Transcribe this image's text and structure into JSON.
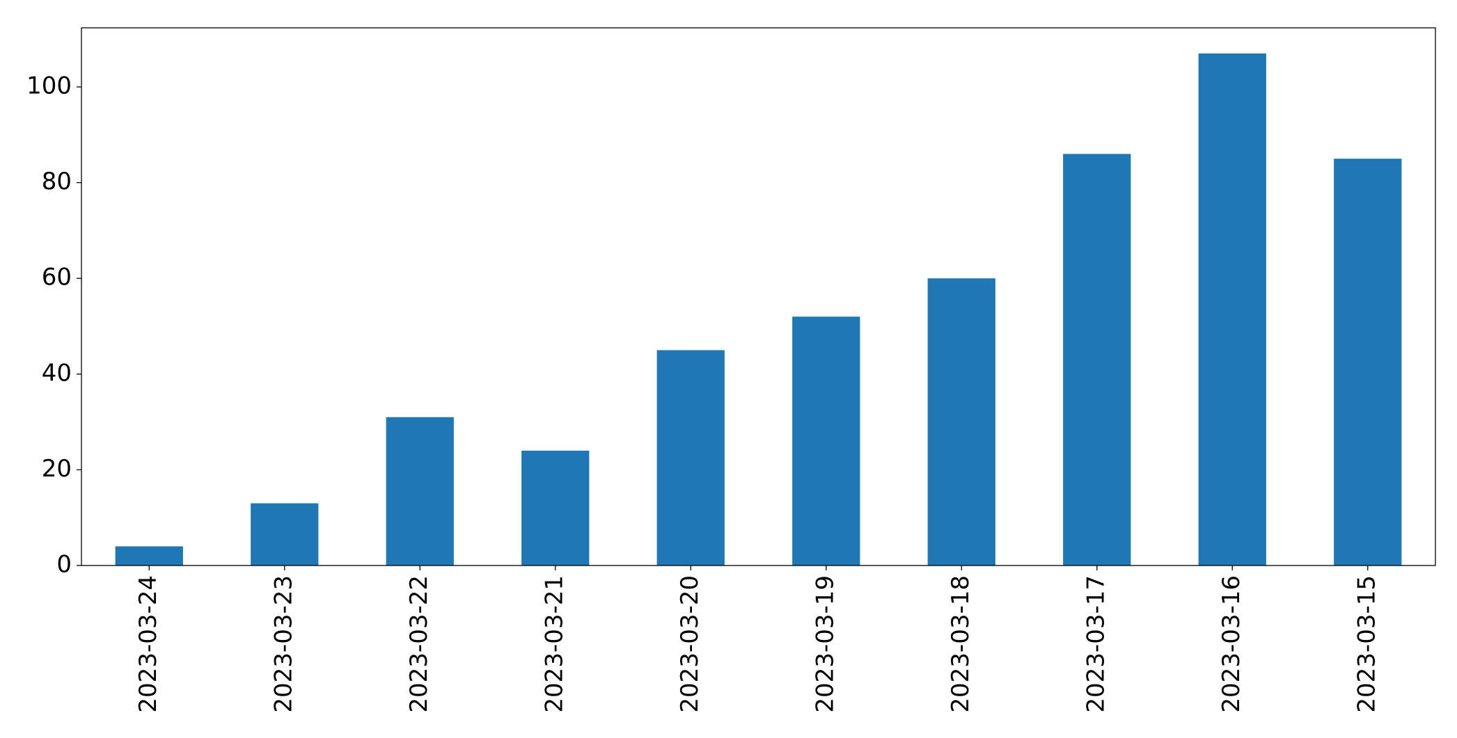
{
  "chart_data": {
    "type": "bar",
    "categories": [
      "2023-03-24",
      "2023-03-23",
      "2023-03-22",
      "2023-03-21",
      "2023-03-20",
      "2023-03-19",
      "2023-03-18",
      "2023-03-17",
      "2023-03-16",
      "2023-03-15"
    ],
    "values": [
      4,
      13,
      31,
      24,
      45,
      52,
      60,
      86,
      107,
      85
    ],
    "color": "#1f77b4",
    "ylim": [
      0,
      112.35
    ],
    "yticks": [
      0,
      20,
      40,
      60,
      80,
      100
    ],
    "grid": false
  }
}
